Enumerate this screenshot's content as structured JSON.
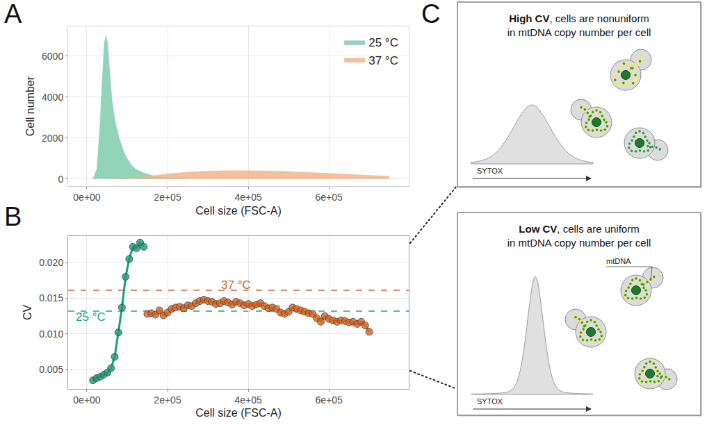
{
  "chart_data": [
    {
      "panel": "A",
      "type": "area",
      "x_label": "Cell size (FSC-A)",
      "y_label": "Cell number",
      "xlim": [
        -46500,
        798000
      ],
      "xticks": [
        {
          "value": 0,
          "label": "0e+00"
        },
        {
          "value": 200000,
          "label": "2e+05"
        },
        {
          "value": 400000,
          "label": "4e+05"
        },
        {
          "value": 600000,
          "label": "6e+05"
        }
      ],
      "ylim": [
        -350,
        7450
      ],
      "yticks": [
        0,
        2000,
        4000,
        6000
      ],
      "grid": true,
      "legend": "top right",
      "series": [
        {
          "name": "25 °C",
          "color": "#7fccae",
          "x": [
            15000,
            25000,
            32000,
            38000,
            43000,
            47000,
            51000,
            56000,
            62000,
            70000,
            80000,
            90000,
            100000,
            110000,
            120000,
            140000,
            160000,
            180000,
            200000,
            250000
          ],
          "values": [
            0,
            500,
            2500,
            5000,
            6600,
            7000,
            6700,
            5400,
            3900,
            2800,
            2000,
            1400,
            1000,
            700,
            500,
            300,
            180,
            100,
            60,
            20
          ]
        },
        {
          "name": "37 °C",
          "color": "#f2b48a",
          "x": [
            50000,
            100000,
            150000,
            200000,
            250000,
            300000,
            350000,
            400000,
            450000,
            500000,
            550000,
            600000,
            650000,
            700000,
            750000
          ],
          "values": [
            0,
            30,
            120,
            250,
            340,
            390,
            410,
            410,
            400,
            370,
            330,
            280,
            230,
            180,
            140
          ]
        }
      ]
    },
    {
      "panel": "B",
      "type": "line",
      "x_label": "Cell size (FSC-A)",
      "y_label": "CV",
      "xlim": [
        -46500,
        798000
      ],
      "xticks": [
        {
          "value": 0,
          "label": "0e+00"
        },
        {
          "value": 200000,
          "label": "2e+05"
        },
        {
          "value": 400000,
          "label": "4e+05"
        },
        {
          "value": 600000,
          "label": "6e+05"
        }
      ],
      "ylim": [
        0.0023,
        0.0237
      ],
      "yticks": [
        0.005,
        {
          "value": 0.01,
          "label": "0.010"
        },
        0.015,
        {
          "value": 0.02,
          "label": "0.020"
        }
      ],
      "grid": true,
      "series": [
        {
          "name": "25 °C",
          "color": "#1b9e77",
          "marker": "circle",
          "x": [
            15000,
            24000,
            33000,
            42000,
            51000,
            60000,
            69000,
            78000,
            87000,
            96000,
            105000,
            114000,
            123000,
            132000,
            141000
          ],
          "values": [
            0.0035,
            0.0038,
            0.004,
            0.0043,
            0.0046,
            0.0052,
            0.0068,
            0.0102,
            0.0137,
            0.018,
            0.0205,
            0.0222,
            0.022,
            0.0228,
            0.0222
          ]
        },
        {
          "name": "37 °C",
          "color": "#d9661f",
          "marker": "circle",
          "x": [
            150000,
            160000,
            170000,
            180000,
            190000,
            200000,
            210000,
            220000,
            230000,
            240000,
            250000,
            260000,
            270000,
            280000,
            290000,
            300000,
            310000,
            320000,
            330000,
            340000,
            350000,
            360000,
            370000,
            380000,
            390000,
            400000,
            410000,
            420000,
            430000,
            440000,
            450000,
            460000,
            470000,
            480000,
            490000,
            500000,
            510000,
            520000,
            530000,
            540000,
            550000,
            560000,
            570000,
            580000,
            590000,
            600000,
            610000,
            620000,
            630000,
            640000,
            650000,
            660000,
            670000,
            680000,
            690000,
            700000
          ],
          "values": [
            0.0128,
            0.0129,
            0.0127,
            0.0133,
            0.0126,
            0.013,
            0.0135,
            0.0137,
            0.0138,
            0.0136,
            0.014,
            0.0139,
            0.0143,
            0.0146,
            0.0148,
            0.0146,
            0.0145,
            0.0142,
            0.0143,
            0.0146,
            0.0144,
            0.0141,
            0.0145,
            0.0143,
            0.014,
            0.0142,
            0.0139,
            0.0141,
            0.0143,
            0.0139,
            0.0136,
            0.0137,
            0.0135,
            0.013,
            0.0128,
            0.0131,
            0.0137,
            0.0135,
            0.0133,
            0.0131,
            0.0129,
            0.0128,
            0.0122,
            0.0117,
            0.0125,
            0.0121,
            0.0119,
            0.0117,
            0.0119,
            0.0118,
            0.0116,
            0.0117,
            0.0114,
            0.0117,
            0.0112,
            0.0103
          ]
        }
      ],
      "reference_lines": [
        {
          "label": "37 °C",
          "value": 0.0161,
          "color": "#c8692e",
          "line_style": "dash",
          "label_x": 370000,
          "label_y": 0.0168
        },
        {
          "label": "25 °C",
          "value": 0.0132,
          "color": "#26a17c",
          "line_style": "dash",
          "label_x": 10000,
          "label_y": 0.0124
        }
      ]
    }
  ],
  "diagram": {
    "letter": "C",
    "panels": [
      {
        "emphasis": "High CV",
        "title_lines": [
          ", cells are nonuniform",
          "in mtDNA copy number per cell"
        ],
        "axis_label": "SYTOX"
      },
      {
        "emphasis": "Low CV",
        "title_lines": [
          ", cells are uniform",
          "in mtDNA copy number per cell"
        ],
        "axis_label": "SYTOX",
        "mark_label": "mtDNA"
      }
    ]
  }
}
